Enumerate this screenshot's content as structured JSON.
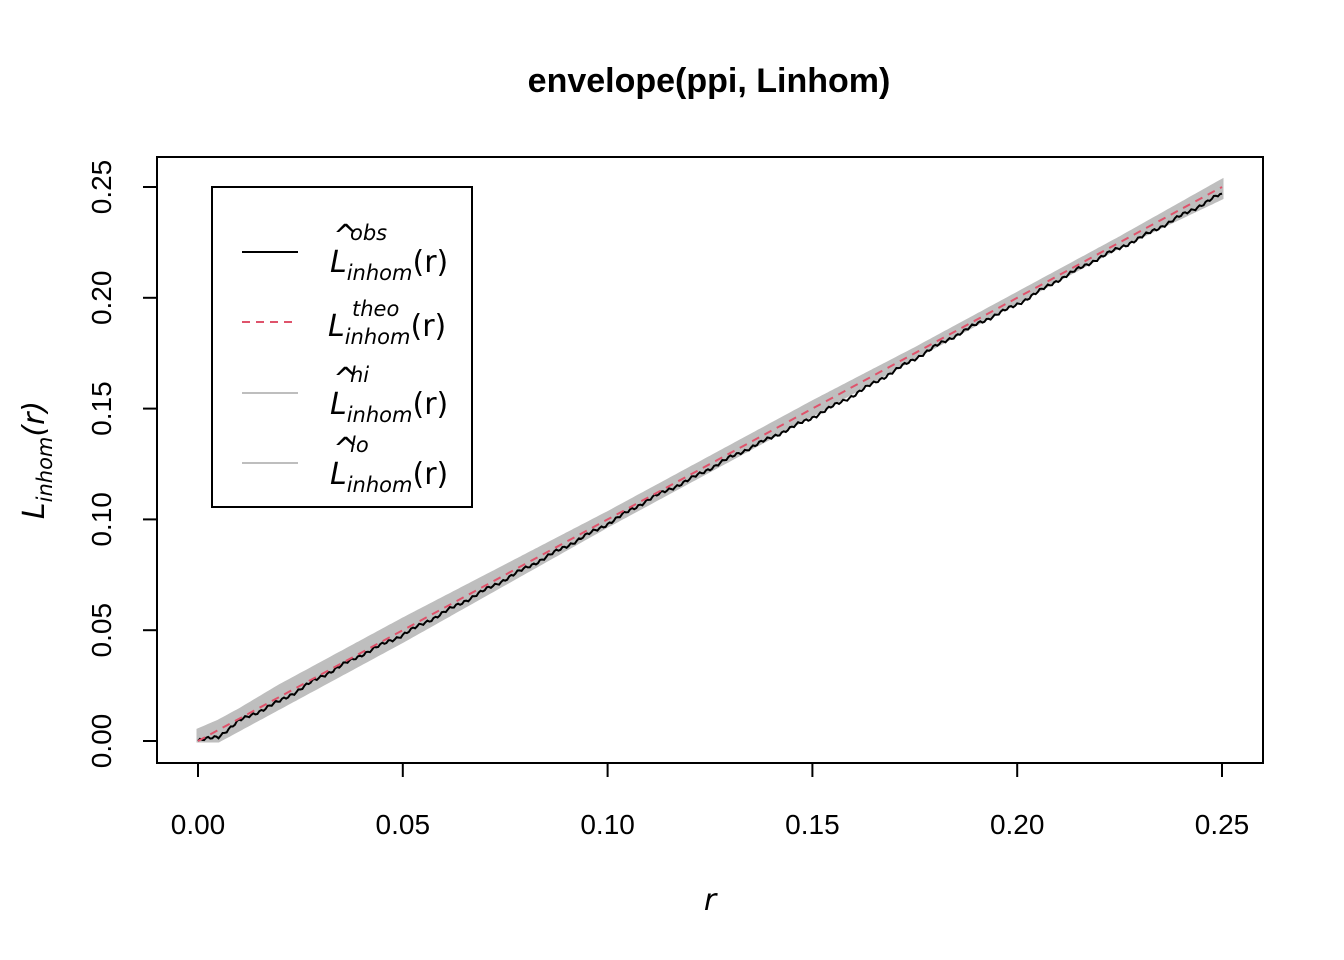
{
  "chart_data": {
    "type": "line",
    "title": "envelope(ppi, Linhom)",
    "xlabel": "r",
    "ylabel": {
      "main": "L",
      "sub": "inhom",
      "arg": "(r)"
    },
    "xlim": [
      0.0,
      0.25
    ],
    "ylim": [
      0.0,
      0.25
    ],
    "xticks": [
      "0.00",
      "0.05",
      "0.10",
      "0.15",
      "0.20",
      "0.25"
    ],
    "yticks": [
      "0.00",
      "0.05",
      "0.10",
      "0.15",
      "0.20",
      "0.25"
    ],
    "legend_position": "top-left",
    "series": [
      {
        "name": {
          "main": "L",
          "hat": true,
          "sup": "obs",
          "sub": "inhom",
          "arg": "(r)"
        },
        "style": "solid",
        "color": "#000000",
        "x": [
          0.0,
          0.005,
          0.01,
          0.02,
          0.03,
          0.04,
          0.05,
          0.06,
          0.07,
          0.08,
          0.09,
          0.1,
          0.11,
          0.12,
          0.13,
          0.14,
          0.15,
          0.16,
          0.17,
          0.18,
          0.19,
          0.2,
          0.21,
          0.22,
          0.23,
          0.24,
          0.25
        ],
        "y": [
          0.0,
          0.002,
          0.009,
          0.018,
          0.029,
          0.039,
          0.048,
          0.058,
          0.068,
          0.078,
          0.088,
          0.098,
          0.109,
          0.118,
          0.128,
          0.137,
          0.146,
          0.156,
          0.167,
          0.178,
          0.188,
          0.197,
          0.208,
          0.218,
          0.227,
          0.237,
          0.247
        ]
      },
      {
        "name": {
          "main": "L",
          "hat": false,
          "sup": "theo",
          "sub": "inhom",
          "arg": "(r)"
        },
        "style": "dashed",
        "color": "#DF536B",
        "x": [
          0.0,
          0.25
        ],
        "y": [
          0.0,
          0.25
        ]
      },
      {
        "name": {
          "main": "L",
          "hat": true,
          "sup": "hi",
          "sub": "inhom",
          "arg": "(r)"
        },
        "style": "solid",
        "color": "#BEBEBE",
        "x": [
          0.0,
          0.005,
          0.01,
          0.02,
          0.03,
          0.05,
          0.075,
          0.1,
          0.125,
          0.15,
          0.175,
          0.2,
          0.225,
          0.25
        ],
        "y": [
          0.005,
          0.009,
          0.014,
          0.025,
          0.035,
          0.055,
          0.079,
          0.103,
          0.128,
          0.153,
          0.177,
          0.202,
          0.227,
          0.253
        ]
      },
      {
        "name": {
          "main": "L",
          "hat": true,
          "sup": "lo",
          "sub": "inhom",
          "arg": "(r)"
        },
        "style": "solid",
        "color": "#BEBEBE",
        "x": [
          0.0,
          0.005,
          0.01,
          0.02,
          0.03,
          0.05,
          0.075,
          0.1,
          0.125,
          0.15,
          0.175,
          0.2,
          0.225,
          0.25
        ],
        "y": [
          0.0,
          0.0,
          0.005,
          0.015,
          0.025,
          0.045,
          0.071,
          0.097,
          0.122,
          0.147,
          0.173,
          0.198,
          0.223,
          0.245
        ]
      }
    ]
  }
}
